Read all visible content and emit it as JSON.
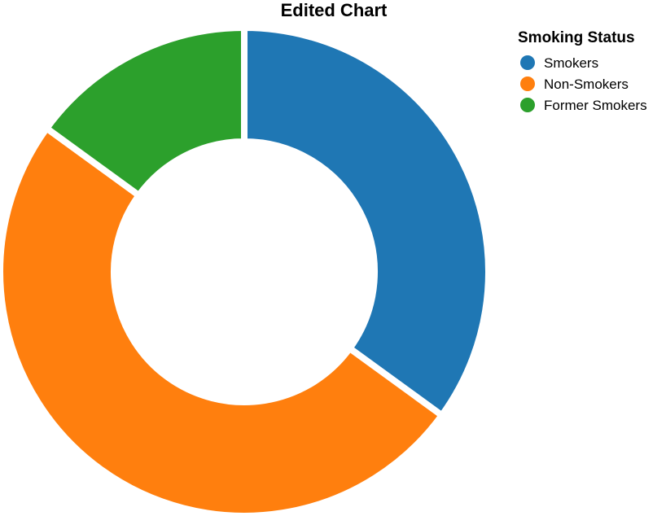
{
  "chart_data": {
    "type": "pie",
    "title": "Edited Chart",
    "legend": {
      "title": "Smoking Status",
      "placement": "top-right"
    },
    "donut": true,
    "categories": [
      "Smokers",
      "Non-Smokers",
      "Former Smokers"
    ],
    "values": [
      35,
      50,
      15
    ],
    "colors": [
      "#1f77b4",
      "#ff7f0e",
      "#2ca02c"
    ]
  }
}
